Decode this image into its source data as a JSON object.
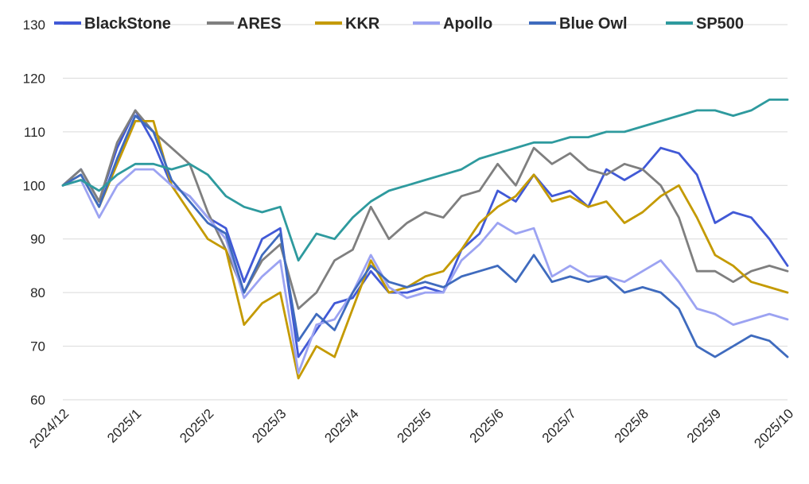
{
  "chart_data": {
    "type": "line",
    "title": "",
    "xlabel": "",
    "ylabel": "",
    "ylim": [
      60,
      130
    ],
    "yticks": [
      60,
      70,
      80,
      90,
      100,
      110,
      120,
      130
    ],
    "grid": "horizontal",
    "legend": "top",
    "x_tick_labels": [
      "2024/12",
      "2025/1",
      "2025/2",
      "2025/3",
      "2025/4",
      "2025/5",
      "2025/6",
      "2025/7",
      "2025/8",
      "2025/9",
      "2025/10"
    ],
    "x": [
      0,
      0.25,
      0.5,
      0.75,
      1,
      1.25,
      1.5,
      1.75,
      2,
      2.25,
      2.5,
      2.75,
      3,
      3.25,
      3.5,
      3.75,
      4,
      4.25,
      4.5,
      4.75,
      5,
      5.25,
      5.5,
      5.75,
      6,
      6.25,
      6.5,
      6.75,
      7,
      7.25,
      7.5,
      7.75,
      8,
      8.25,
      8.5,
      8.75,
      9,
      9.25,
      9.5,
      9.75,
      10
    ],
    "series": [
      {
        "name": "BlackStone",
        "color": "#4159D6",
        "values": [
          100,
          103,
          97,
          107,
          114,
          108,
          100,
          98,
          94,
          92,
          82,
          90,
          92,
          68,
          73,
          78,
          79,
          84,
          80,
          80,
          81,
          80,
          88,
          91,
          99,
          97,
          102,
          98,
          99,
          96,
          103,
          101,
          103,
          107,
          106,
          102,
          93,
          95,
          94,
          90,
          85
        ]
      },
      {
        "name": "ARES",
        "color": "#7F7F7F",
        "values": [
          100,
          103,
          97,
          108,
          114,
          110,
          107,
          104,
          95,
          88,
          80,
          86,
          89,
          77,
          80,
          86,
          88,
          96,
          90,
          93,
          95,
          94,
          98,
          99,
          104,
          100,
          107,
          104,
          106,
          103,
          102,
          104,
          103,
          100,
          94,
          84,
          84,
          82,
          84,
          85,
          84
        ]
      },
      {
        "name": "KKR",
        "color": "#C49A00",
        "values": [
          100,
          102,
          96,
          104,
          112,
          112,
          100,
          95,
          90,
          88,
          74,
          78,
          80,
          64,
          70,
          68,
          77,
          86,
          80,
          81,
          83,
          84,
          88,
          93,
          96,
          98,
          102,
          97,
          98,
          96,
          97,
          93,
          95,
          98,
          100,
          94,
          87,
          85,
          82,
          81,
          80
        ]
      },
      {
        "name": "Apollo",
        "color": "#9CA3F2",
        "values": [
          100,
          101,
          94,
          100,
          103,
          103,
          100,
          98,
          94,
          90,
          79,
          83,
          86,
          65,
          74,
          75,
          80,
          87,
          81,
          79,
          80,
          80,
          86,
          89,
          93,
          91,
          92,
          83,
          85,
          83,
          83,
          82,
          84,
          86,
          82,
          77,
          76,
          74,
          75,
          76,
          75
        ]
      },
      {
        "name": "Blue Owl",
        "color": "#3F6BBE",
        "values": [
          100,
          102,
          96,
          105,
          113,
          110,
          101,
          97,
          93,
          91,
          80,
          87,
          91,
          71,
          76,
          73,
          80,
          85,
          82,
          81,
          82,
          81,
          83,
          84,
          85,
          82,
          87,
          82,
          83,
          82,
          83,
          80,
          81,
          80,
          77,
          70,
          68,
          70,
          72,
          71,
          68
        ]
      },
      {
        "name": "SP500",
        "color": "#2E9A9E",
        "values": [
          100,
          101,
          99,
          102,
          104,
          104,
          103,
          104,
          102,
          98,
          96,
          95,
          96,
          86,
          91,
          90,
          94,
          97,
          99,
          100,
          101,
          102,
          103,
          105,
          106,
          107,
          108,
          108,
          109,
          109,
          110,
          110,
          111,
          112,
          113,
          114,
          114,
          113,
          114,
          116,
          116
        ]
      }
    ]
  }
}
